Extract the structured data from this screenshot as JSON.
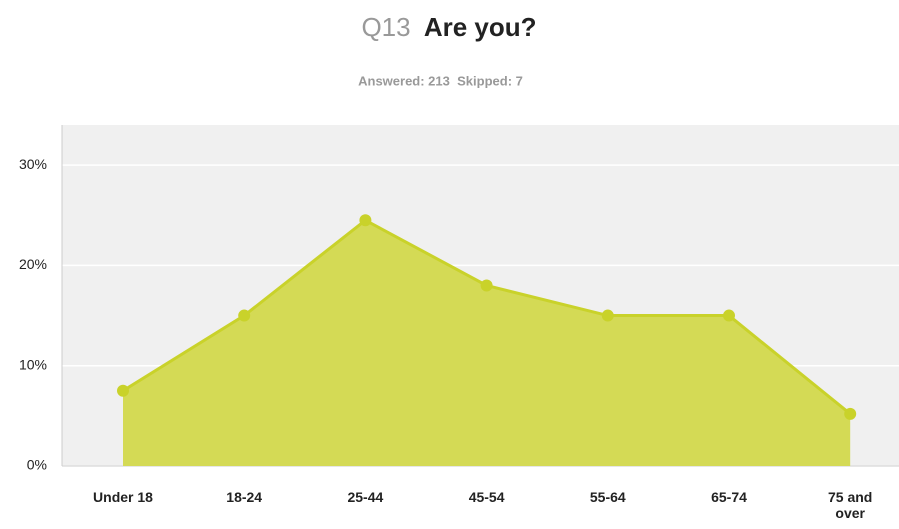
{
  "question_number": "Q13",
  "chart_data": {
    "type": "area",
    "title": "Are you?",
    "answered": "Answered: 213",
    "skipped": "Skipped: 7",
    "categories": [
      "Under 18",
      "18-24",
      "25-44",
      "45-54",
      "55-64",
      "65-74",
      "75 and over"
    ],
    "values": [
      7.5,
      15,
      24.5,
      18,
      15,
      15,
      5.2
    ],
    "color": "#d4da55",
    "line_color": "#c9d22a",
    "background": "#f0f0f0",
    "ylim": [
      0,
      34
    ],
    "yticks": [
      {
        "value": 0,
        "label": "0%"
      },
      {
        "value": 10,
        "label": "10%"
      },
      {
        "value": 20,
        "label": "20%"
      },
      {
        "value": 30,
        "label": "30%"
      }
    ],
    "grid": true
  }
}
